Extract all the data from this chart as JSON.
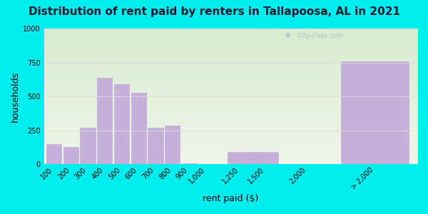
{
  "title": "Distribution of rent paid by renters in Tallapoosa, AL in 2021",
  "xlabel": "rent paid ($)",
  "ylabel": "households",
  "background_outer": "#00EEEE",
  "bg_color_top": "#d8ecd0",
  "bg_color_bottom": "#f0f5ea",
  "bar_color": "#c4b0d8",
  "bar_edge_color": "#b8a8ce",
  "categories": [
    "100",
    "200",
    "300",
    "400",
    "500",
    "600",
    "700",
    "800",
    "900",
    "1,000",
    "1,250",
    "1,500",
    "2,000",
    "> 2,000"
  ],
  "values": [
    150,
    130,
    270,
    635,
    590,
    525,
    270,
    285,
    5,
    0,
    90,
    90,
    0,
    760
  ],
  "x_positions": [
    0,
    1,
    2,
    3,
    4,
    5,
    6,
    7,
    8,
    9,
    11,
    12.5,
    15,
    19
  ],
  "bar_widths": [
    0.9,
    0.9,
    0.9,
    0.9,
    0.9,
    0.9,
    0.9,
    0.9,
    0.9,
    0.9,
    1.5,
    1.5,
    0.9,
    4.0
  ],
  "ylim": [
    0,
    1000
  ],
  "yticks": [
    0,
    250,
    500,
    750,
    1000
  ],
  "title_fontsize": 11,
  "axis_label_fontsize": 9,
  "tick_fontsize": 7,
  "watermark": "City-Data.com",
  "title_color": "#1a1a2e"
}
